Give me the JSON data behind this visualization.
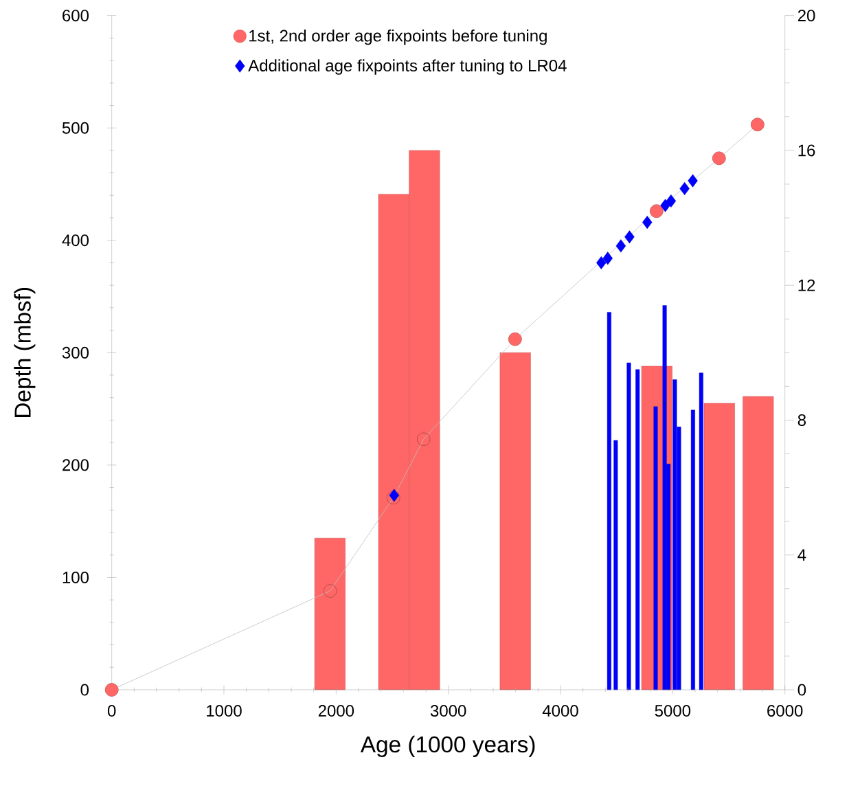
{
  "chart_data": {
    "type": "bar",
    "xlabel": "Age (1000 years)",
    "ylabel": "Depth (mbsf)",
    "xlim": [
      0,
      6000
    ],
    "xticks": [
      0,
      1000,
      2000,
      3000,
      4000,
      5000,
      6000
    ],
    "ylim": [
      0,
      600
    ],
    "yticks": [
      0,
      100,
      200,
      300,
      400,
      500,
      600
    ],
    "y2lim": [
      0,
      20
    ],
    "y2ticks": [
      0,
      4,
      8,
      12,
      16,
      20
    ],
    "legend": "top",
    "series": [
      {
        "axis": "y2",
        "color": "#ff6666",
        "x": [
          1945,
          2514,
          2787,
          3597,
          4859,
          5416,
          5762
        ],
        "values": [
          4.5,
          14.7,
          16.0,
          10.0,
          9.6,
          8.5,
          8.7
        ]
      },
      {
        "axis": "y2",
        "color": "#0000ff",
        "x": [
          4434,
          4492,
          4609,
          4687,
          4848,
          4928,
          4962,
          5019,
          5056,
          5181,
          5254
        ],
        "values": [
          11.2,
          7.4,
          9.7,
          9.5,
          8.4,
          11.4,
          6.7,
          9.2,
          7.8,
          8.3,
          9.4
        ]
      },
      {
        "type": "line",
        "color": "#bfbfbf",
        "marker": "circle",
        "x": [
          0,
          1947,
          2511,
          2780,
          3595,
          4856,
          5413,
          5756
        ],
        "values": [
          0,
          88,
          171,
          223,
          312,
          426,
          473,
          503
        ]
      },
      {
        "type": "scatter",
        "name": "1st, 2nd order age fixpoints before tuning",
        "color": "#ff6666",
        "marker": "circle",
        "x": [
          0,
          3595,
          4856,
          5413,
          5756
        ],
        "values": [
          0,
          312,
          426,
          473,
          503
        ]
      },
      {
        "type": "scatter",
        "name": "Additional age fixpoints after tuning to LR04",
        "color": "#0000ff",
        "marker": "diamond",
        "x": [
          2517,
          4363,
          4421,
          4538,
          4615,
          4773,
          4934,
          4985,
          5106,
          5179
        ],
        "values": [
          173,
          380,
          384,
          395,
          403,
          416,
          431,
          435,
          446,
          453
        ]
      }
    ]
  }
}
